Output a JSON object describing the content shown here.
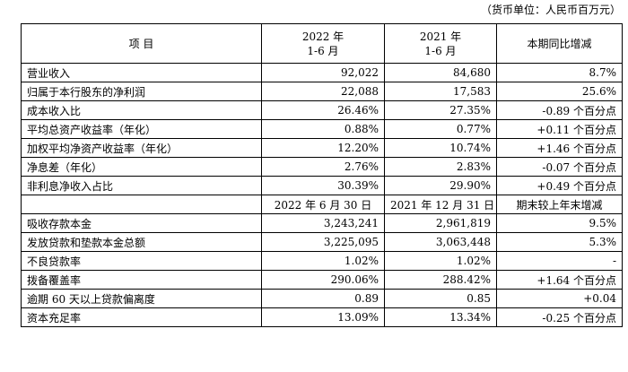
{
  "unit_note": "（货币单位：人民币百万元）",
  "header": {
    "item": "项 目",
    "col2_line1": "2022 年",
    "col2_line2": "1-6 月",
    "col3_line1": "2021 年",
    "col3_line2": "1-6 月",
    "col4": "本期同比增减"
  },
  "rows_period": [
    {
      "label": "营业收入",
      "v2022": "92,022",
      "v2021": "84,680",
      "change": "8.7%"
    },
    {
      "label": "归属于本行股东的净利润",
      "v2022": "22,088",
      "v2021": "17,583",
      "change": "25.6%"
    },
    {
      "label": "成本收入比",
      "v2022": "26.46%",
      "v2021": "27.35%",
      "change": "-0.89 个百分点"
    },
    {
      "label": "平均总资产收益率（年化）",
      "v2022": "0.88%",
      "v2021": "0.77%",
      "change": "+0.11 个百分点"
    },
    {
      "label": "加权平均净资产收益率（年化）",
      "v2022": "12.20%",
      "v2021": "10.74%",
      "change": "+1.46 个百分点"
    },
    {
      "label": "净息差（年化）",
      "v2022": "2.76%",
      "v2021": "2.83%",
      "change": "-0.07 个百分点"
    },
    {
      "label": "非利息净收入占比",
      "v2022": "30.39%",
      "v2021": "29.90%",
      "change": "+0.49 个百分点"
    }
  ],
  "subheader": {
    "col2": "2022 年 6 月 30 日",
    "col3": "2021 年 12 月 31 日",
    "col4": "期末较上年末增减"
  },
  "rows_balance": [
    {
      "label": "吸收存款本金",
      "v2022": "3,243,241",
      "v2021": "2,961,819",
      "change": "9.5%"
    },
    {
      "label": "发放贷款和垫款本金总额",
      "v2022": "3,225,095",
      "v2021": "3,063,448",
      "change": "5.3%"
    },
    {
      "label": "不良贷款率",
      "v2022": "1.02%",
      "v2021": "1.02%",
      "change": "-"
    },
    {
      "label": "拨备覆盖率",
      "v2022": "290.06%",
      "v2021": "288.42%",
      "change": "+1.64 个百分点"
    },
    {
      "label": "逾期 60 天以上贷款偏离度",
      "v2022": "0.89",
      "v2021": "0.85",
      "change": "+0.04"
    },
    {
      "label": "资本充足率",
      "v2022": "13.09%",
      "v2021": "13.34%",
      "change": "-0.25 个百分点"
    }
  ]
}
